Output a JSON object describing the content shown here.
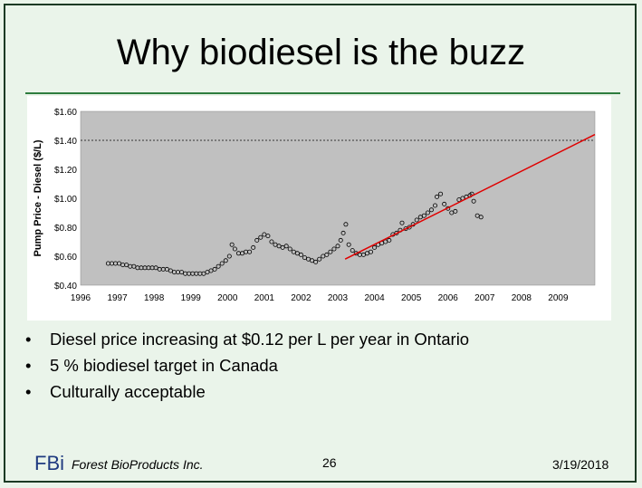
{
  "slide": {
    "title": "Why biodiesel is the buzz",
    "bullets": [
      "Diesel price increasing at $0.12 per L per year in Ontario",
      "5 % biodiesel target in Canada",
      "Culturally acceptable"
    ],
    "footer": {
      "logo": "FBi",
      "org": "Forest BioProducts Inc.",
      "page": "26",
      "date": "3/19/2018"
    }
  },
  "colors": {
    "background": "#eaf4ea",
    "plot_area": "#c0c0c0",
    "trend_line": "#e00000",
    "markers": "#000000",
    "title_rule": "#2e7d3e"
  },
  "chart_data": {
    "type": "scatter",
    "title": "",
    "xlabel": "",
    "ylabel": "Pump Price - Diesel ($/L)",
    "xlim": [
      1996,
      2010
    ],
    "ylim": [
      0.4,
      1.6
    ],
    "x_ticks": [
      "1996",
      "1997",
      "1998",
      "1999",
      "2000",
      "2001",
      "2002",
      "2003",
      "2004",
      "2005",
      "2006",
      "2007",
      "2008",
      "2009"
    ],
    "y_ticks": [
      "$0.40",
      "$0.60",
      "$0.80",
      "$1.00",
      "$1.20",
      "$1.40",
      "$1.60"
    ],
    "y_tick_values": [
      0.4,
      0.6,
      0.8,
      1.0,
      1.2,
      1.4,
      1.6
    ],
    "reference_line": {
      "y": 1.4,
      "style": "dotted"
    },
    "legend": "none",
    "grid": false,
    "series": [
      {
        "marker": "circle",
        "points": [
          [
            1996.75,
            0.55
          ],
          [
            1996.85,
            0.55
          ],
          [
            1996.95,
            0.55
          ],
          [
            1997.05,
            0.55
          ],
          [
            1997.15,
            0.54
          ],
          [
            1997.25,
            0.54
          ],
          [
            1997.35,
            0.53
          ],
          [
            1997.45,
            0.53
          ],
          [
            1997.55,
            0.52
          ],
          [
            1997.65,
            0.52
          ],
          [
            1997.75,
            0.52
          ],
          [
            1997.85,
            0.52
          ],
          [
            1997.95,
            0.52
          ],
          [
            1998.05,
            0.52
          ],
          [
            1998.15,
            0.51
          ],
          [
            1998.25,
            0.51
          ],
          [
            1998.35,
            0.51
          ],
          [
            1998.45,
            0.5
          ],
          [
            1998.55,
            0.49
          ],
          [
            1998.65,
            0.49
          ],
          [
            1998.75,
            0.49
          ],
          [
            1998.85,
            0.48
          ],
          [
            1998.95,
            0.48
          ],
          [
            1999.05,
            0.48
          ],
          [
            1999.15,
            0.48
          ],
          [
            1999.25,
            0.48
          ],
          [
            1999.35,
            0.48
          ],
          [
            1999.45,
            0.49
          ],
          [
            1999.55,
            0.5
          ],
          [
            1999.65,
            0.51
          ],
          [
            1999.75,
            0.53
          ],
          [
            1999.85,
            0.55
          ],
          [
            1999.95,
            0.57
          ],
          [
            2000.05,
            0.6
          ],
          [
            2000.12,
            0.68
          ],
          [
            2000.2,
            0.65
          ],
          [
            2000.3,
            0.62
          ],
          [
            2000.4,
            0.62
          ],
          [
            2000.5,
            0.63
          ],
          [
            2000.6,
            0.63
          ],
          [
            2000.7,
            0.66
          ],
          [
            2000.8,
            0.71
          ],
          [
            2000.9,
            0.73
          ],
          [
            2001.0,
            0.75
          ],
          [
            2001.1,
            0.74
          ],
          [
            2001.2,
            0.7
          ],
          [
            2001.3,
            0.68
          ],
          [
            2001.4,
            0.67
          ],
          [
            2001.5,
            0.66
          ],
          [
            2001.6,
            0.67
          ],
          [
            2001.7,
            0.65
          ],
          [
            2001.8,
            0.63
          ],
          [
            2001.9,
            0.62
          ],
          [
            2002.0,
            0.61
          ],
          [
            2002.1,
            0.59
          ],
          [
            2002.2,
            0.58
          ],
          [
            2002.3,
            0.57
          ],
          [
            2002.4,
            0.56
          ],
          [
            2002.5,
            0.58
          ],
          [
            2002.6,
            0.6
          ],
          [
            2002.7,
            0.61
          ],
          [
            2002.8,
            0.63
          ],
          [
            2002.9,
            0.65
          ],
          [
            2003.0,
            0.67
          ],
          [
            2003.08,
            0.71
          ],
          [
            2003.15,
            0.76
          ],
          [
            2003.22,
            0.82
          ],
          [
            2003.3,
            0.68
          ],
          [
            2003.4,
            0.64
          ],
          [
            2003.5,
            0.62
          ],
          [
            2003.6,
            0.61
          ],
          [
            2003.7,
            0.61
          ],
          [
            2003.8,
            0.62
          ],
          [
            2003.9,
            0.63
          ],
          [
            2004.0,
            0.66
          ],
          [
            2004.1,
            0.68
          ],
          [
            2004.2,
            0.69
          ],
          [
            2004.3,
            0.7
          ],
          [
            2004.4,
            0.71
          ],
          [
            2004.5,
            0.75
          ],
          [
            2004.6,
            0.76
          ],
          [
            2004.7,
            0.78
          ],
          [
            2004.75,
            0.83
          ],
          [
            2004.85,
            0.79
          ],
          [
            2004.95,
            0.8
          ],
          [
            2005.05,
            0.82
          ],
          [
            2005.15,
            0.85
          ],
          [
            2005.25,
            0.87
          ],
          [
            2005.35,
            0.88
          ],
          [
            2005.45,
            0.9
          ],
          [
            2005.55,
            0.92
          ],
          [
            2005.65,
            0.95
          ],
          [
            2005.7,
            1.01
          ],
          [
            2005.8,
            1.03
          ],
          [
            2005.9,
            0.96
          ],
          [
            2006.0,
            0.93
          ],
          [
            2006.1,
            0.9
          ],
          [
            2006.2,
            0.91
          ],
          [
            2006.3,
            0.99
          ],
          [
            2006.4,
            1.0
          ],
          [
            2006.5,
            1.01
          ],
          [
            2006.6,
            1.02
          ],
          [
            2006.65,
            1.03
          ],
          [
            2006.7,
            0.98
          ],
          [
            2006.8,
            0.88
          ],
          [
            2006.9,
            0.87
          ]
        ]
      }
    ],
    "trend_line": {
      "x": [
        2003.2,
        2010.0
      ],
      "y": [
        0.58,
        1.44
      ]
    }
  }
}
